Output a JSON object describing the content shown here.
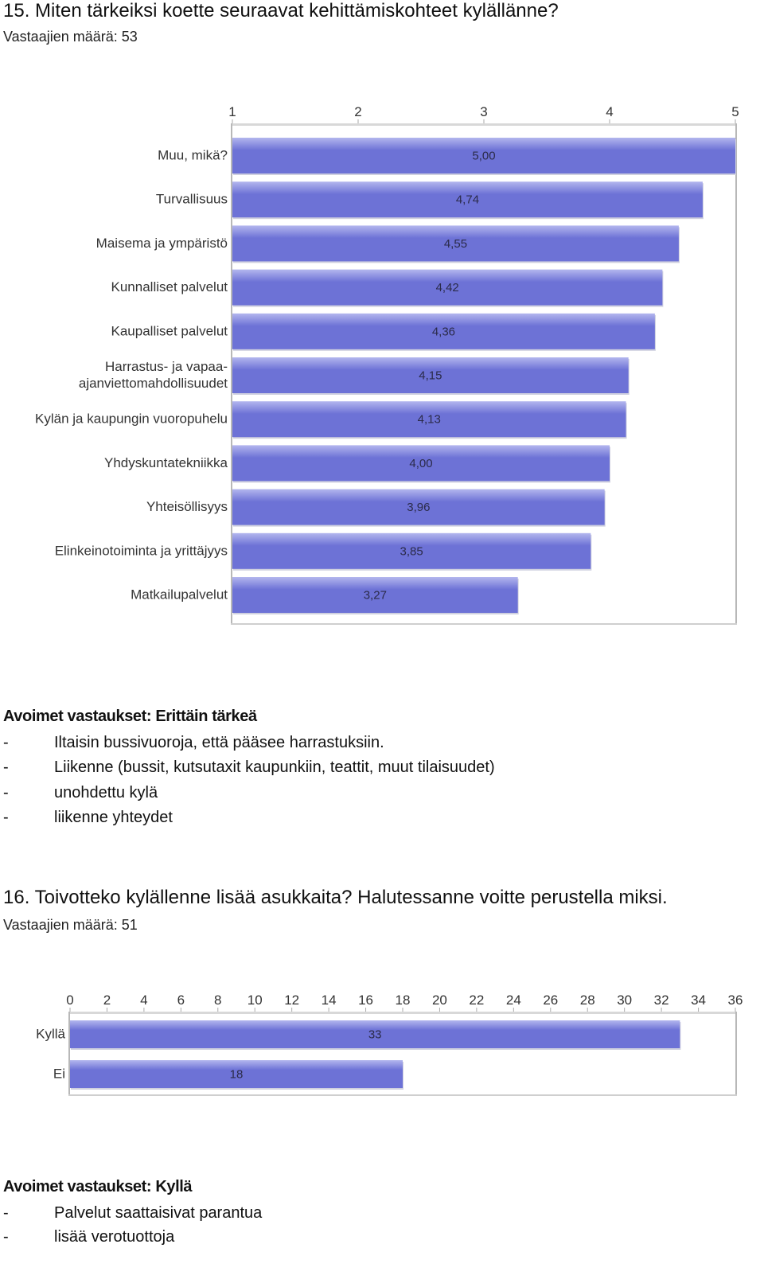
{
  "q15": {
    "title": "15. Miten tärkeiksi koette seuraavat kehittämiskohteet kylällänne?",
    "count": "Vastaajien määrä: 53",
    "open_heading": "Avoimet vastaukset: Erittäin tärkeä",
    "answers": [
      {
        "dash": "-",
        "text": "Iltaisin bussivuoroja, että pääsee harrastuksiin."
      },
      {
        "dash": "-",
        "text": "Liikenne (bussit, kutsutaxit kaupunkiin, teattit, muut tilaisuudet)"
      },
      {
        "dash": "-",
        "text": "unohdettu kylä"
      },
      {
        "dash": "-",
        "text": "liikenne yhteydet"
      }
    ]
  },
  "q16": {
    "title": "16. Toivotteko kylällenne lisää asukkaita? Halutessanne voitte perustella miksi.",
    "count": "Vastaajien määrä: 51",
    "open_heading": "Avoimet vastaukset: Kyllä",
    "answers": [
      {
        "dash": "-",
        "text": "Palvelut saattaisivat parantua"
      },
      {
        "dash": "-",
        "text": "lisää verotuottoja"
      }
    ]
  },
  "chart_data": [
    {
      "type": "bar",
      "orientation": "horizontal",
      "categories": [
        "Muu, mikä?",
        "Turvallisuus",
        "Maisema ja ympäristö",
        "Kunnalliset palvelut",
        "Kaupalliset palvelut",
        "Harrastus- ja vapaa-ajanviettomahdollisuudet",
        "Kylän ja kaupungin vuoropuhelu",
        "Yhdyskuntatekniikka",
        "Yhteisöllisyys",
        "Elinkeinotoiminta ja yrittäjyys",
        "Matkailupalvelut"
      ],
      "category_lines": [
        [
          "Muu, mikä?"
        ],
        [
          "Turvallisuus"
        ],
        [
          "Maisema ja ympäristö"
        ],
        [
          "Kunnalliset palvelut"
        ],
        [
          "Kaupalliset palvelut"
        ],
        [
          "Harrastus- ja vapaa-",
          "ajanviettomahdollisuudet"
        ],
        [
          "Kylän ja kaupungin vuoropuhelu"
        ],
        [
          "Yhdyskuntatekniikka"
        ],
        [
          "Yhteisöllisyys"
        ],
        [
          "Elinkeinotoiminta ja yrittäjyys"
        ],
        [
          "Matkailupalvelut"
        ]
      ],
      "values": [
        5.0,
        4.74,
        4.55,
        4.42,
        4.36,
        4.15,
        4.13,
        4.0,
        3.96,
        3.85,
        3.27
      ],
      "value_labels": [
        "5,00",
        "4,74",
        "4,55",
        "4,42",
        "4,36",
        "4,15",
        "4,13",
        "4,00",
        "3,96",
        "3,85",
        "3,27"
      ],
      "xlim": [
        1,
        5
      ],
      "ticks": [
        1,
        2,
        3,
        4,
        5
      ],
      "tick_labels": [
        "1",
        "2",
        "3",
        "4",
        "5"
      ],
      "grid": false,
      "bar_color": "#6d72d6",
      "bar_highlight": "#b3b6ee"
    },
    {
      "type": "bar",
      "orientation": "horizontal",
      "categories": [
        "Kyllä",
        "Ei"
      ],
      "values": [
        33,
        18
      ],
      "value_labels": [
        "33",
        "18"
      ],
      "xlim": [
        0,
        36
      ],
      "ticks": [
        0,
        2,
        4,
        6,
        8,
        10,
        12,
        14,
        16,
        18,
        20,
        22,
        24,
        26,
        28,
        30,
        32,
        34,
        36
      ],
      "tick_labels": [
        "0",
        "2",
        "4",
        "6",
        "8",
        "10",
        "12",
        "14",
        "16",
        "18",
        "20",
        "22",
        "24",
        "26",
        "28",
        "30",
        "32",
        "34",
        "36"
      ],
      "grid": false,
      "bar_color": "#6d72d6",
      "bar_highlight": "#b3b6ee"
    }
  ]
}
